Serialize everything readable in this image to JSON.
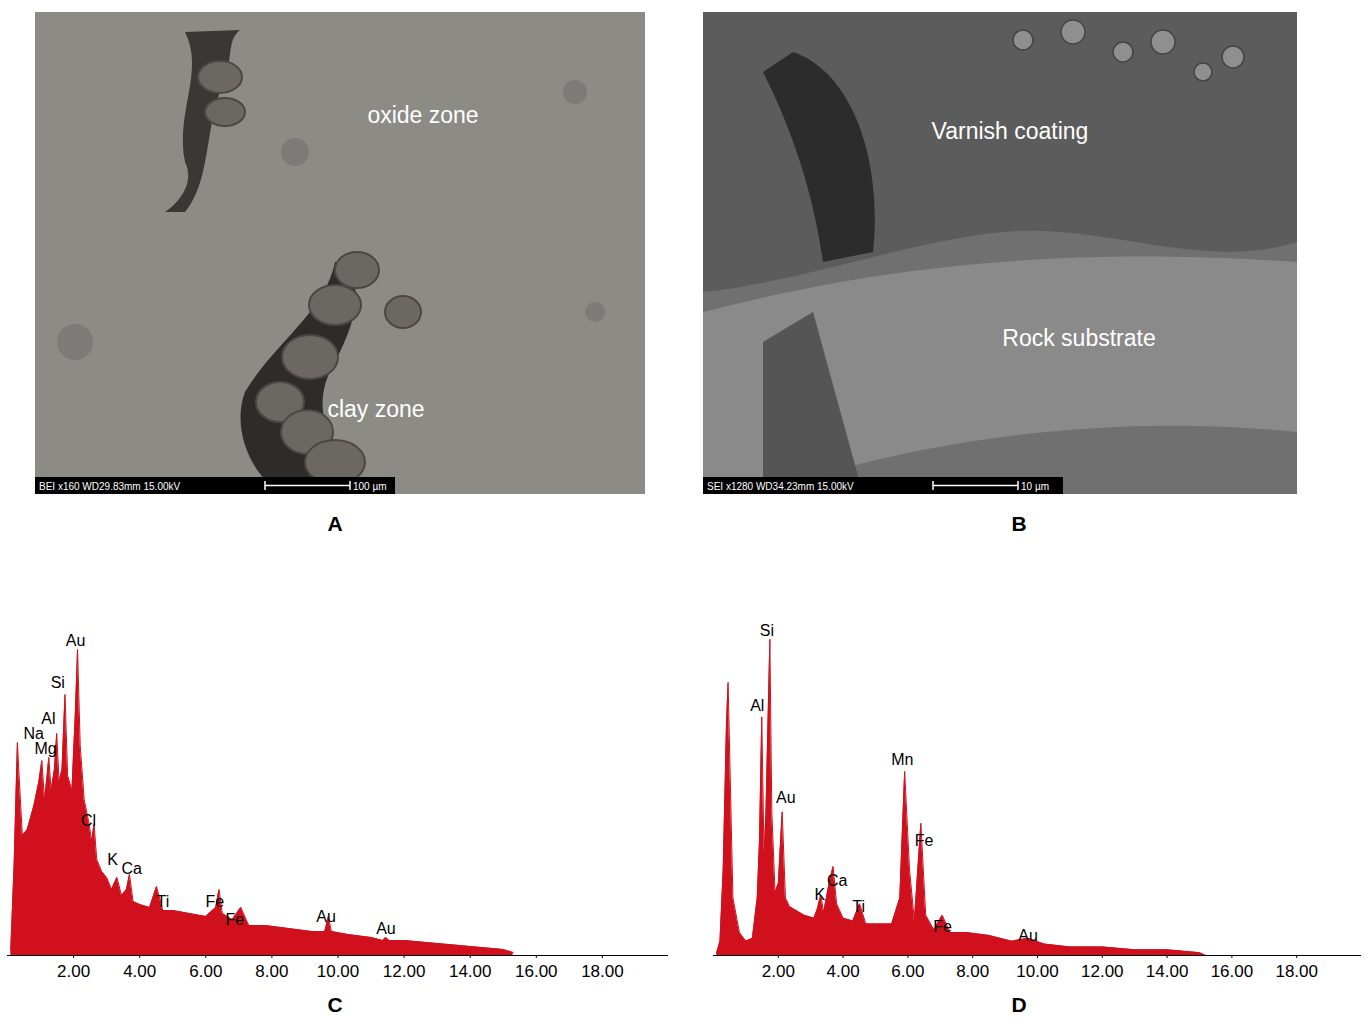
{
  "images": [
    {
      "letter": "A",
      "labels": [
        "oxide zone",
        "clay zone"
      ],
      "info": "BEI x160 WD29.83mm 15.00kV",
      "scale_bar": "100 µm"
    },
    {
      "letter": "B",
      "labels": [
        "Varnish coating",
        "Rock substrate"
      ],
      "info": "SEI x1280 WD34.23mm 15.00kV",
      "scale_bar": "10 µm"
    }
  ],
  "chart_data": [
    {
      "type": "area",
      "panel": "C",
      "color": "#d0101c",
      "tick_labels": "x",
      "xlim": [
        0,
        20
      ],
      "ylim": [
        0,
        115
      ],
      "xticks": [
        {
          "value": 2,
          "label": "2.00"
        },
        {
          "value": 4,
          "label": "4.00"
        },
        {
          "value": 6,
          "label": "6.00"
        },
        {
          "value": 8,
          "label": "8.00"
        },
        {
          "value": 10,
          "label": "10.00"
        },
        {
          "value": 12,
          "label": "12.00"
        },
        {
          "value": 14,
          "label": "14.00"
        },
        {
          "value": 16,
          "label": "16.00"
        },
        {
          "value": 18,
          "label": "18.00"
        }
      ],
      "x": [
        0.1,
        0.2,
        0.3,
        0.35,
        0.45,
        0.6,
        0.8,
        0.95,
        1.04,
        1.12,
        1.2,
        1.25,
        1.32,
        1.42,
        1.49,
        1.56,
        1.65,
        1.74,
        1.82,
        1.95,
        2.05,
        2.12,
        2.2,
        2.32,
        2.45,
        2.55,
        2.62,
        2.7,
        2.85,
        3.0,
        3.15,
        3.31,
        3.45,
        3.6,
        3.69,
        3.8,
        4.0,
        4.3,
        4.51,
        4.7,
        5.0,
        5.5,
        6.0,
        6.3,
        6.4,
        6.5,
        6.8,
        7.06,
        7.3,
        7.8,
        8.5,
        9.2,
        9.6,
        9.71,
        9.8,
        10.3,
        11.0,
        11.35,
        11.44,
        11.55,
        12.0,
        13.0,
        14.0,
        15.0,
        15.3
      ],
      "values": [
        2,
        30,
        71,
        60,
        40,
        42,
        50,
        58,
        65,
        52,
        60,
        66,
        55,
        62,
        74,
        58,
        62,
        87,
        60,
        55,
        80,
        102,
        70,
        52,
        45,
        38,
        44,
        32,
        28,
        26,
        22,
        26,
        20,
        22,
        27,
        18,
        17,
        16,
        23,
        15,
        15,
        14,
        13,
        16,
        22,
        14,
        12,
        16,
        10,
        10,
        9,
        8,
        8,
        13,
        8,
        7,
        6,
        5,
        6,
        5,
        5,
        4,
        3,
        2,
        1
      ],
      "annotations": [
        {
          "text": "Au",
          "x": 2.06,
          "y": 105
        },
        {
          "text": "Si",
          "x": 1.52,
          "y": 91
        },
        {
          "text": "Al",
          "x": 1.24,
          "y": 79
        },
        {
          "text": "Na",
          "x": 0.79,
          "y": 74
        },
        {
          "text": "Mg",
          "x": 1.15,
          "y": 69
        },
        {
          "text": "Cl",
          "x": 2.45,
          "y": 45
        },
        {
          "text": "K",
          "x": 3.18,
          "y": 32
        },
        {
          "text": "Ca",
          "x": 3.76,
          "y": 29
        },
        {
          "text": "Ti",
          "x": 4.7,
          "y": 18
        },
        {
          "text": "Fe",
          "x": 6.27,
          "y": 18
        },
        {
          "text": "Fe",
          "x": 6.88,
          "y": 12
        },
        {
          "text": "Au",
          "x": 9.64,
          "y": 13
        },
        {
          "text": "Au",
          "x": 11.45,
          "y": 9
        }
      ]
    },
    {
      "type": "area",
      "panel": "D",
      "color": "#d0101c",
      "tick_labels": "x",
      "xlim": [
        0,
        20
      ],
      "ylim": [
        0,
        120
      ],
      "xticks": [
        {
          "value": 2,
          "label": "2.00"
        },
        {
          "value": 4,
          "label": "4.00"
        },
        {
          "value": 6,
          "label": "6.00"
        },
        {
          "value": 8,
          "label": "8.00"
        },
        {
          "value": 10,
          "label": "10.00"
        },
        {
          "value": 12,
          "label": "12.00"
        },
        {
          "value": 14,
          "label": "14.00"
        },
        {
          "value": 16,
          "label": "16.00"
        },
        {
          "value": 18,
          "label": "18.00"
        }
      ],
      "x": [
        0.1,
        0.2,
        0.3,
        0.4,
        0.45,
        0.52,
        0.6,
        0.8,
        1.0,
        1.2,
        1.35,
        1.42,
        1.49,
        1.56,
        1.62,
        1.68,
        1.74,
        1.8,
        1.9,
        2.0,
        2.12,
        2.22,
        2.35,
        2.5,
        2.8,
        3.1,
        3.2,
        3.31,
        3.4,
        3.55,
        3.69,
        3.8,
        4.0,
        4.3,
        4.51,
        4.7,
        5.0,
        5.5,
        5.75,
        5.9,
        6.05,
        6.2,
        6.4,
        6.55,
        6.8,
        7.06,
        7.3,
        7.8,
        8.5,
        9.2,
        9.71,
        10.2,
        11.0,
        12.0,
        13.0,
        14.0,
        15.0,
        15.2
      ],
      "values": [
        1,
        5,
        30,
        80,
        95,
        60,
        20,
        8,
        5,
        6,
        20,
        40,
        83,
        35,
        50,
        80,
        110,
        50,
        22,
        25,
        50,
        20,
        17,
        16,
        14,
        13,
        16,
        21,
        15,
        24,
        31,
        18,
        13,
        12,
        18,
        11,
        11,
        11,
        20,
        64,
        30,
        12,
        46,
        14,
        9,
        14,
        8,
        8,
        7,
        5,
        6,
        4,
        3,
        3,
        2,
        2,
        1,
        0
      ],
      "annotations": [
        {
          "text": "Si",
          "x": 1.65,
          "y": 113
        },
        {
          "text": "Al",
          "x": 1.35,
          "y": 87
        },
        {
          "text": "Au",
          "x": 2.23,
          "y": 55
        },
        {
          "text": "Mn",
          "x": 5.83,
          "y": 68
        },
        {
          "text": "Fe",
          "x": 6.5,
          "y": 40
        },
        {
          "text": "K",
          "x": 3.28,
          "y": 21
        },
        {
          "text": "Ca",
          "x": 3.82,
          "y": 26
        },
        {
          "text": "Ti",
          "x": 4.48,
          "y": 17
        },
        {
          "text": "Fe",
          "x": 7.07,
          "y": 10
        },
        {
          "text": "Au",
          "x": 9.71,
          "y": 7
        }
      ]
    }
  ]
}
